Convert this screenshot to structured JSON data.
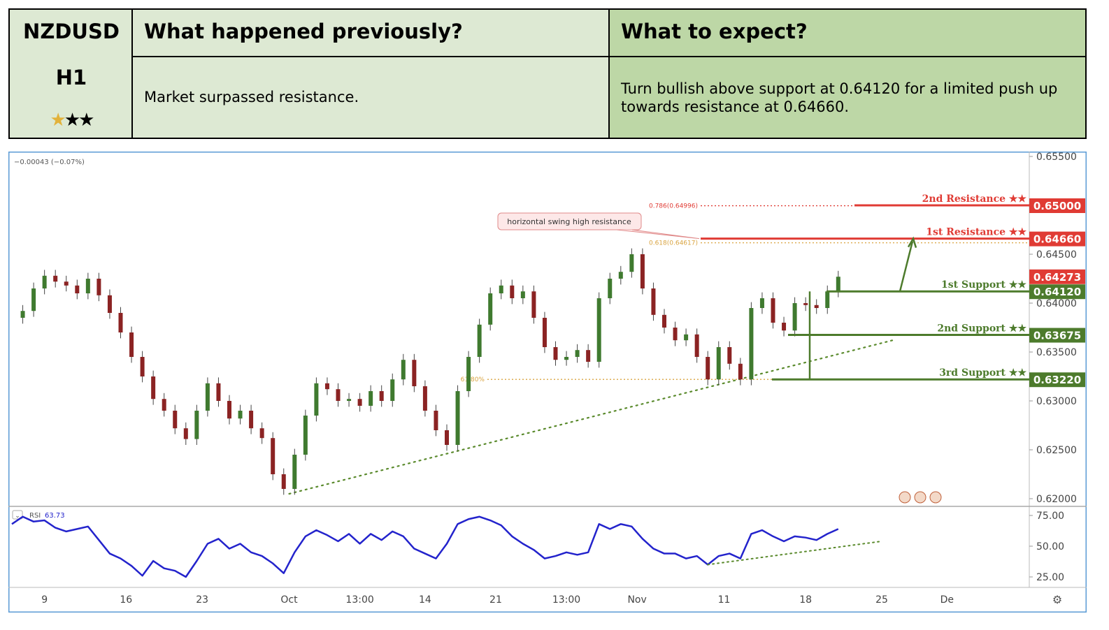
{
  "header": {
    "symbol": "NZDUSD",
    "timeframe": "H1",
    "rating_filled": 1,
    "rating_total": 3,
    "prev_title": "What happened previously?",
    "prev_text": "Market surpassed resistance.",
    "expect_title": "What to expect?",
    "expect_text": "Turn bullish above support at 0.64120 for a limited push up towards resistance at 0.64660."
  },
  "colors": {
    "resistance": "#e03b34",
    "support": "#4d7b2c",
    "rsi_line": "#2323cc",
    "trend": "#5a8a2c",
    "fib": "#d9a441"
  },
  "chart_data": {
    "type": "line",
    "title": "NZDUSD H1",
    "change_label": "−0.00043 (−0.07%)",
    "y_ticks": [
      "0.65500",
      "0.65000",
      "0.64500",
      "0.64000",
      "0.63500",
      "0.63000",
      "0.62500",
      "0.62000"
    ],
    "y_tick_values": [
      0.655,
      0.65,
      0.645,
      0.64,
      0.635,
      0.63,
      0.625,
      0.62
    ],
    "ylim": [
      0.6195,
      0.6558
    ],
    "x_ticks": [
      "9",
      "16",
      "23",
      "Oct",
      "13:00",
      "14",
      "21",
      "13:00",
      "Nov",
      "11",
      "18",
      "25",
      "De"
    ],
    "x_tick_index": [
      3,
      10.5,
      17.5,
      25.5,
      32,
      38,
      44.5,
      51,
      57.5,
      65.5,
      73,
      80,
      86
    ],
    "levels": [
      {
        "name": "2nd Resistance ★★",
        "value": 0.65,
        "price_label": "0.65000",
        "kind": "resistance"
      },
      {
        "name": "1st Resistance ★★",
        "value": 0.6466,
        "price_label": "0.64660",
        "kind": "resistance"
      },
      {
        "name": "1st Support ★★",
        "value": 0.6412,
        "price_label": "0.64120",
        "kind": "support"
      },
      {
        "name": "2nd Support ★★",
        "value": 0.63675,
        "price_label": "0.63675",
        "kind": "support"
      },
      {
        "name": "3rd Support ★★",
        "value": 0.6322,
        "price_label": "0.63220",
        "kind": "support"
      }
    ],
    "current_price": {
      "value": 0.64273,
      "label": "0.64273"
    },
    "fib_levels": [
      {
        "label": "0.786(0.64996)",
        "value": 0.64996
      },
      {
        "label": "0.618(0.64617)",
        "value": 0.64617
      },
      {
        "label": "61.80%",
        "value": 0.6322
      }
    ],
    "annotation": "horizontal swing high resistance",
    "trendline": {
      "from": {
        "i": 25.5,
        "v": 0.6205
      },
      "to": {
        "i": 81,
        "v": 0.6362
      }
    },
    "price_series": [
      0.6385,
      0.6392,
      0.6415,
      0.6428,
      0.6422,
      0.6418,
      0.641,
      0.6425,
      0.6408,
      0.639,
      0.637,
      0.6345,
      0.6325,
      0.6302,
      0.629,
      0.6272,
      0.6261,
      0.629,
      0.6318,
      0.63,
      0.6282,
      0.629,
      0.6272,
      0.6262,
      0.6225,
      0.621,
      0.6245,
      0.6285,
      0.6318,
      0.6312,
      0.63,
      0.6302,
      0.6295,
      0.631,
      0.63,
      0.6322,
      0.6342,
      0.6315,
      0.629,
      0.627,
      0.6255,
      0.631,
      0.6345,
      0.6378,
      0.641,
      0.6418,
      0.6405,
      0.6412,
      0.6385,
      0.6355,
      0.6342,
      0.6345,
      0.6352,
      0.634,
      0.6405,
      0.6425,
      0.6432,
      0.645,
      0.6415,
      0.6388,
      0.6375,
      0.6362,
      0.6368,
      0.6345,
      0.6322,
      0.6355,
      0.6338,
      0.6322,
      0.6395,
      0.6405,
      0.638,
      0.6372,
      0.64,
      0.6398,
      0.6395,
      0.6412,
      0.6427
    ],
    "rsi": {
      "label": "RSI",
      "value_label": "63.73",
      "ticks": [
        "75.00",
        "50.00",
        "25.00"
      ],
      "tick_values": [
        75,
        50,
        25
      ],
      "ylim": [
        15,
        80
      ],
      "series": [
        68,
        74,
        70,
        71,
        65,
        62,
        64,
        66,
        55,
        44,
        40,
        34,
        26,
        38,
        32,
        30,
        25,
        38,
        52,
        56,
        48,
        52,
        45,
        42,
        36,
        28,
        45,
        58,
        63,
        59,
        54,
        60,
        52,
        60,
        55,
        62,
        58,
        48,
        44,
        40,
        52,
        68,
        72,
        74,
        71,
        67,
        58,
        52,
        47,
        40,
        42,
        45,
        43,
        45,
        68,
        64,
        68,
        66,
        56,
        48,
        44,
        44,
        40,
        42,
        35,
        42,
        44,
        40,
        60,
        63,
        58,
        54,
        58,
        57,
        55,
        60,
        64
      ],
      "trendline": {
        "from": {
          "i": 64,
          "v": 35
        },
        "to": {
          "i": 80,
          "v": 54
        }
      }
    }
  }
}
